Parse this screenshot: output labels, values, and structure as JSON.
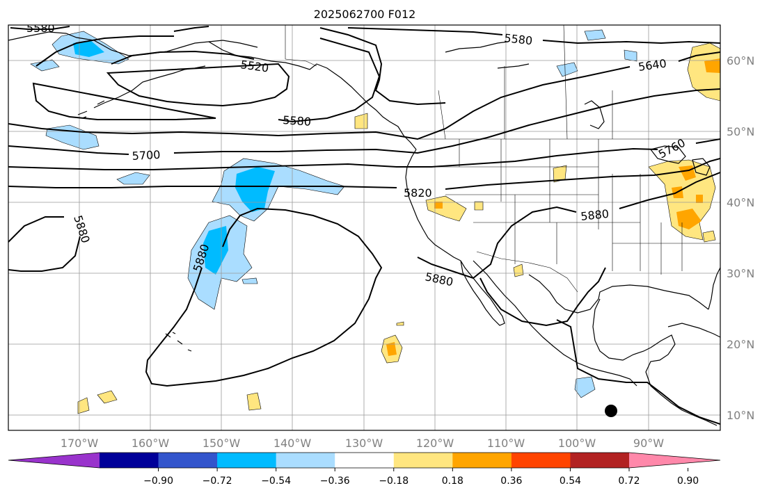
{
  "title": "2025062700 F012",
  "longitude_labels": [
    "170°W",
    "160°W",
    "150°W",
    "140°W",
    "130°W",
    "120°W",
    "110°W",
    "100°W",
    "90°W"
  ],
  "latitude_labels": [
    "60°N",
    "50°N",
    "40°N",
    "30°N",
    "20°N",
    "10°N"
  ],
  "contour_labels": [
    "5580",
    "5520",
    "5580",
    "5580",
    "5640",
    "5700",
    "5760",
    "5820",
    "5880",
    "5880",
    "5880",
    "5880"
  ],
  "colorbar": {
    "tick_labels": [
      "−0.90",
      "−0.72",
      "−0.54",
      "−0.36",
      "−0.18",
      "0.18",
      "0.36",
      "0.54",
      "0.72",
      "0.90"
    ],
    "colors": [
      "#9933cc",
      "#000099",
      "#3355cc",
      "#00bbff",
      "#aaddff",
      "#ffffff",
      "#ffe680",
      "#ffa500",
      "#ff4400",
      "#b22222",
      "#ff88aa"
    ]
  },
  "colors": {
    "contour": "#000000",
    "coast": "#000000",
    "grid": "#999999",
    "frame": "#000000"
  }
}
